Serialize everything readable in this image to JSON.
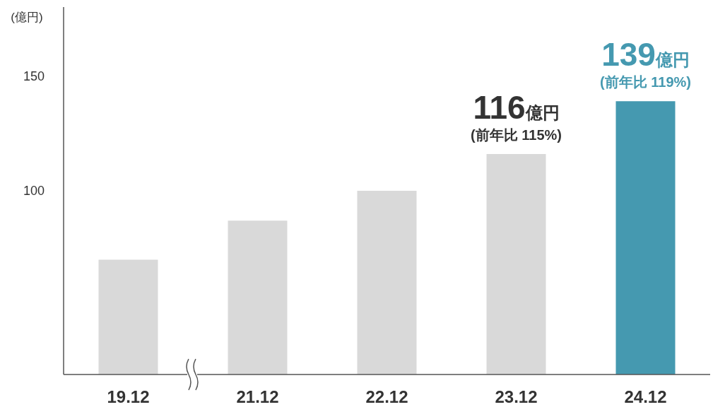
{
  "chart_data": {
    "type": "bar",
    "ylabel": "(億円)",
    "categories": [
      "19.12",
      "21.12",
      "22.12",
      "23.12",
      "24.12"
    ],
    "values": [
      70,
      87,
      100,
      116,
      139
    ],
    "colors": [
      "#d9d9d9",
      "#d9d9d9",
      "#d9d9d9",
      "#d9d9d9",
      "#4599b0"
    ],
    "value_labels": [
      null,
      null,
      null,
      "116億円",
      "139億円"
    ],
    "annotations": [
      {
        "text": "(前年比 115%)",
        "x": "23.12",
        "y": 116
      },
      {
        "text": "(前年比 119%)",
        "x": "24.12",
        "y": 139
      }
    ],
    "ylim": [
      20,
      180
    ],
    "yticks": [
      100,
      150
    ],
    "grid": false
  }
}
